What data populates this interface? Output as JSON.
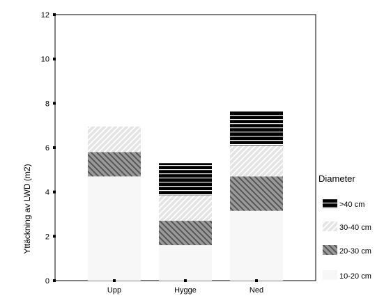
{
  "chart_data": {
    "type": "bar",
    "stacked": true,
    "title": "",
    "xlabel": "",
    "ylabel": "Yttäckning av LWD (m2)",
    "ylim": [
      0,
      12
    ],
    "yticks": [
      0,
      2,
      4,
      6,
      8,
      10,
      12
    ],
    "categories": [
      "Upp",
      "Hygge",
      "Ned"
    ],
    "series": [
      {
        "name": "10-20 cm",
        "values": [
          4.7,
          1.6,
          3.15
        ],
        "color": "#f7f7f7",
        "pattern": "solid"
      },
      {
        "name": "20-30 cm",
        "values": [
          1.1,
          1.1,
          1.55
        ],
        "color": "#8a8a8a",
        "pattern": "dark-diagonal"
      },
      {
        "name": "30-40 cm",
        "values": [
          1.15,
          1.15,
          1.4
        ],
        "color": "#dcdcdc",
        "pattern": "light-diagonal"
      },
      {
        "name": ">40 cm",
        "values": [
          0,
          1.45,
          1.55
        ],
        "color": "#000000",
        "pattern": "horizontal-stripes"
      }
    ],
    "legend": {
      "title": "Diameter",
      "placement": "right",
      "order": [
        ">40 cm",
        "30-40 cm",
        "20-30 cm",
        "10-20 cm"
      ]
    },
    "grid": false
  }
}
